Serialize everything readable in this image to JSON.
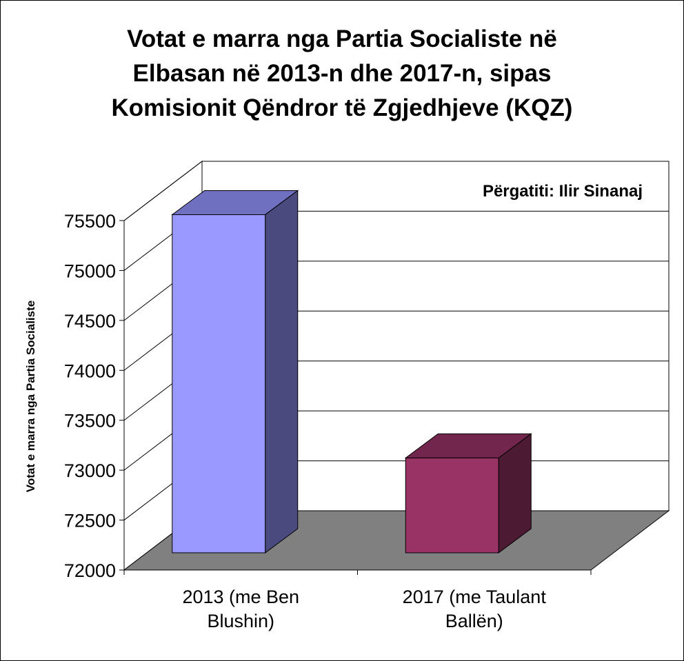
{
  "chart_data": {
    "type": "bar",
    "title_lines": [
      "Votat e marra nga Partia Socialiste në",
      "Elbasan në 2013-n dhe 2017-n, sipas",
      "Komisionit Qëndror të Zgjedhjeve (KQZ)"
    ],
    "annotation": "Përgatiti: Ilir Sinanaj",
    "ylabel": "Votat e marra nga Partia Socialiste",
    "xlabel": "",
    "categories": [
      [
        "2013 (me Ben",
        "Blushin)"
      ],
      [
        "2017 (me Taulant",
        "Ballën)"
      ]
    ],
    "values": [
      75200,
      72950
    ],
    "ylim": [
      72000,
      75500
    ],
    "yticks": [
      "72000",
      "72500",
      "73000",
      "73500",
      "74000",
      "74500",
      "75000",
      "75500"
    ],
    "grid": true,
    "style": "3d",
    "colors": {
      "bar1_front": "#9999ff",
      "bar1_top": "#7070c0",
      "bar1_side": "#4a4a7f",
      "bar2_front": "#993366",
      "bar2_top": "#73264d",
      "bar2_side": "#4d1a33",
      "floor": "#808080"
    }
  }
}
